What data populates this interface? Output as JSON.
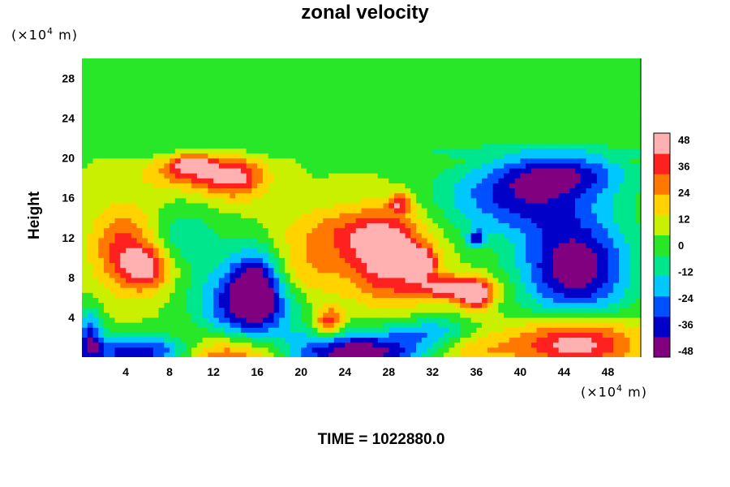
{
  "chart_data": {
    "type": "heatmap",
    "title": "zonal velocity",
    "ylabel": "Height",
    "xlabel": "",
    "x_unit": "(×10",
    "x_unit_exp": "4",
    "x_unit_end": " m)",
    "y_unit": "(×10",
    "y_unit_exp": "4",
    "y_unit_end": " m)",
    "footer": "TIME = 1022880.0",
    "xlim": [
      0,
      51
    ],
    "ylim": [
      0,
      30
    ],
    "x_ticks": [
      "4",
      "8",
      "12",
      "16",
      "20",
      "24",
      "28",
      "32",
      "36",
      "40",
      "44",
      "48"
    ],
    "y_ticks": [
      "4",
      "8",
      "12",
      "16",
      "20",
      "24",
      "28"
    ],
    "colorbar": {
      "range": [
        -48,
        48
      ],
      "tick_labels": [
        "48",
        "36",
        "24",
        "12",
        "0",
        "-12",
        "-24",
        "-36",
        "-48"
      ],
      "colors": [
        "#800080",
        "#0000c8",
        "#0050ff",
        "#00c8ff",
        "#00e68c",
        "#28e628",
        "#c8f000",
        "#ffd200",
        "#ff7800",
        "#ff2020",
        "#ffb0b0"
      ]
    },
    "features": [
      {
        "x": 24,
        "y": 25,
        "v": 0,
        "sx": 30,
        "sy": 6
      },
      {
        "x": 24,
        "y": 20.7,
        "v": -3,
        "sx": 28,
        "sy": 0.3
      },
      {
        "x": 4,
        "y": 11,
        "v": 36,
        "sx": 2.2,
        "sy": 3
      },
      {
        "x": 6,
        "y": 9,
        "v": 34,
        "sx": 1.5,
        "sy": 1.5
      },
      {
        "x": 10,
        "y": 18.5,
        "v": 30,
        "sx": 3,
        "sy": 1.2
      },
      {
        "x": 14,
        "y": 18,
        "v": 36,
        "sx": 2,
        "sy": 1.5
      },
      {
        "x": 10,
        "y": 19.5,
        "v": 40,
        "sx": 1.2,
        "sy": 0.6
      },
      {
        "x": 15,
        "y": 5.5,
        "v": -40,
        "sx": 3,
        "sy": 3
      },
      {
        "x": 16,
        "y": 7.5,
        "v": -30,
        "sx": 1.5,
        "sy": 2.5
      },
      {
        "x": 28,
        "y": 10,
        "v": 46,
        "sx": 2.5,
        "sy": 3
      },
      {
        "x": 24,
        "y": 12.5,
        "v": 26,
        "sx": 4,
        "sy": 2
      },
      {
        "x": 31,
        "y": 9.5,
        "v": 40,
        "sx": 1,
        "sy": 1
      },
      {
        "x": 34,
        "y": 7,
        "v": 44,
        "sx": 2.5,
        "sy": 0.9
      },
      {
        "x": 36,
        "y": 6,
        "v": 40,
        "sx": 1,
        "sy": 1
      },
      {
        "x": 29,
        "y": 15.5,
        "v": 34,
        "sx": 0.7,
        "sy": 0.7
      },
      {
        "x": 22.5,
        "y": 3.5,
        "v": 38,
        "sx": 1,
        "sy": 1.1
      },
      {
        "x": 45,
        "y": 9,
        "v": -48,
        "sx": 3.5,
        "sy": 3.5
      },
      {
        "x": 40,
        "y": 16,
        "v": -32,
        "sx": 5,
        "sy": 2.5
      },
      {
        "x": 44,
        "y": 18.5,
        "v": -28,
        "sx": 4,
        "sy": 1.5
      },
      {
        "x": 36,
        "y": 12,
        "v": -30,
        "sx": 0.6,
        "sy": 0.6
      },
      {
        "x": 25,
        "y": 0.5,
        "v": -48,
        "sx": 5,
        "sy": 1.5
      },
      {
        "x": 6,
        "y": 0.5,
        "v": -44,
        "sx": 4,
        "sy": 1.2
      },
      {
        "x": 13,
        "y": 0.2,
        "v": 48,
        "sx": 4,
        "sy": 1.5
      },
      {
        "x": 45,
        "y": 1.5,
        "v": 48,
        "sx": 4,
        "sy": 1.8
      },
      {
        "x": 0.7,
        "y": 2,
        "v": -30,
        "sx": 0.8,
        "sy": 2
      },
      {
        "x": 35,
        "y": 0.8,
        "v": 24,
        "sx": 3,
        "sy": 1.2
      },
      {
        "x": 32,
        "y": 2.5,
        "v": -18,
        "sx": 2.5,
        "sy": 1
      },
      {
        "x": 9,
        "y": 12,
        "v": -12,
        "sx": 2.5,
        "sy": 2
      },
      {
        "x": 20,
        "y": 8.5,
        "v": 22,
        "sx": 3,
        "sy": 2
      }
    ]
  }
}
